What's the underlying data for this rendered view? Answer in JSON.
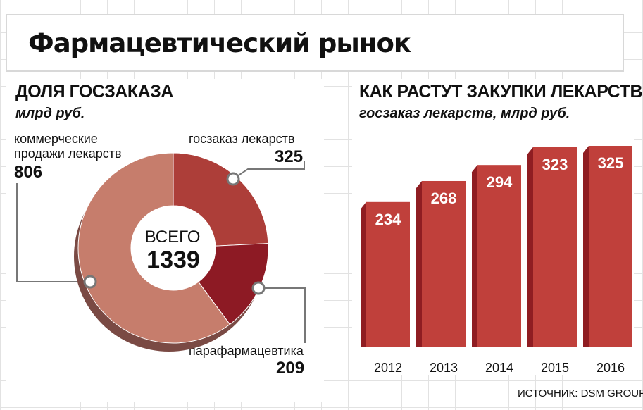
{
  "title": "Фармацевтический рынок",
  "left": {
    "heading": "ДОЛЯ ГОСЗАКАЗА",
    "unit": "млрд руб.",
    "center_label": "ВСЕГО",
    "center_value": "1339",
    "callouts": {
      "commercial": {
        "label_line1": "коммерческие",
        "label_line2": "продажи лекарств",
        "value": "806"
      },
      "government": {
        "label": "госзаказ лекарств",
        "value": "325"
      },
      "parapharm": {
        "label": "парафармацевтика",
        "value": "209"
      }
    }
  },
  "right": {
    "heading": "КАК РАСТУТ ЗАКУПКИ ЛЕКАРСТВ",
    "subheading": "госзаказ лекарств, млрд руб."
  },
  "source": "ИСТОЧНИК: DSM GROUP",
  "colors": {
    "commercial": "#c67d6c",
    "government": "#ad3e39",
    "parapharm": "#8d1a24",
    "bar": "#c0403b",
    "bar_dark": "#8f1d22"
  },
  "chart_data": [
    {
      "type": "pie",
      "title": "ДОЛЯ ГОСЗАКАЗА",
      "subtitle": "млрд руб.",
      "total": 1339,
      "slices": [
        {
          "label": "госзаказ лекарств",
          "value": 325
        },
        {
          "label": "парафармацевтика",
          "value": 209
        },
        {
          "label": "коммерческие продажи лекарств",
          "value": 806
        }
      ]
    },
    {
      "type": "bar",
      "title": "КАК РАСТУТ ЗАКУПКИ ЛЕКАРСТВ",
      "subtitle": "госзаказ лекарств, млрд руб.",
      "categories": [
        "2012",
        "2013",
        "2014",
        "2015",
        "2016"
      ],
      "values": [
        234,
        268,
        294,
        323,
        325
      ],
      "ylim": [
        0,
        325
      ]
    }
  ]
}
